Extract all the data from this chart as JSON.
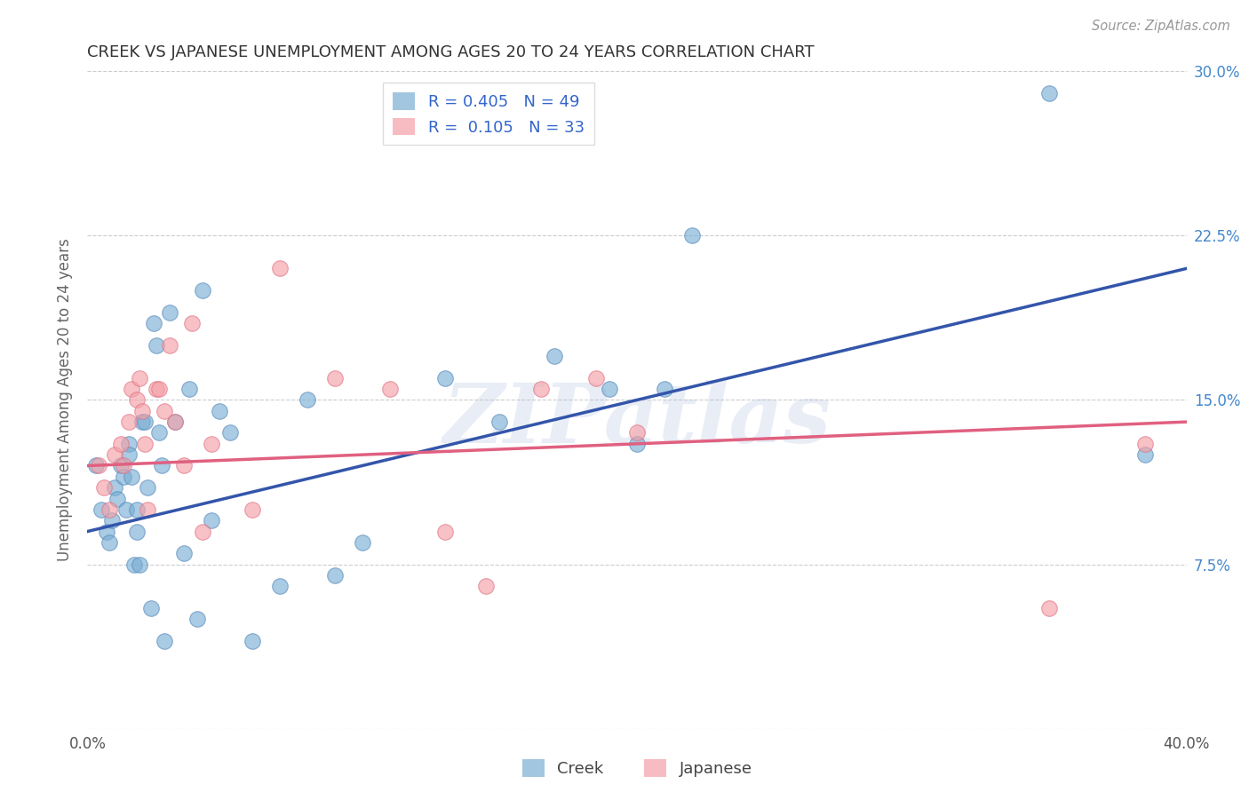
{
  "title": "CREEK VS JAPANESE UNEMPLOYMENT AMONG AGES 20 TO 24 YEARS CORRELATION CHART",
  "source": "Source: ZipAtlas.com",
  "ylabel": "Unemployment Among Ages 20 to 24 years",
  "xlim": [
    0.0,
    0.4
  ],
  "ylim": [
    0.0,
    0.3
  ],
  "legend_creek_R": "0.405",
  "legend_creek_N": "49",
  "legend_japanese_R": "0.105",
  "legend_japanese_N": "33",
  "creek_color": "#7BAFD4",
  "japanese_color": "#F4A0A8",
  "creek_edge_color": "#5588BB",
  "japanese_edge_color": "#E07080",
  "creek_line_color": "#3355AA",
  "japanese_line_color": "#E06080",
  "watermark": "ZIPatlas",
  "creek_x": [
    0.003,
    0.005,
    0.007,
    0.008,
    0.009,
    0.01,
    0.011,
    0.012,
    0.013,
    0.014,
    0.015,
    0.015,
    0.016,
    0.017,
    0.018,
    0.018,
    0.019,
    0.02,
    0.021,
    0.022,
    0.023,
    0.024,
    0.025,
    0.026,
    0.027,
    0.028,
    0.03,
    0.032,
    0.035,
    0.037,
    0.04,
    0.042,
    0.045,
    0.048,
    0.052,
    0.06,
    0.07,
    0.08,
    0.09,
    0.1,
    0.13,
    0.15,
    0.17,
    0.19,
    0.2,
    0.21,
    0.22,
    0.35,
    0.385
  ],
  "creek_y": [
    0.12,
    0.1,
    0.09,
    0.085,
    0.095,
    0.11,
    0.105,
    0.12,
    0.115,
    0.1,
    0.13,
    0.125,
    0.115,
    0.075,
    0.1,
    0.09,
    0.075,
    0.14,
    0.14,
    0.11,
    0.055,
    0.185,
    0.175,
    0.135,
    0.12,
    0.04,
    0.19,
    0.14,
    0.08,
    0.155,
    0.05,
    0.2,
    0.095,
    0.145,
    0.135,
    0.04,
    0.065,
    0.15,
    0.07,
    0.085,
    0.16,
    0.14,
    0.17,
    0.155,
    0.13,
    0.155,
    0.225,
    0.29,
    0.125
  ],
  "japanese_x": [
    0.004,
    0.006,
    0.008,
    0.01,
    0.012,
    0.013,
    0.015,
    0.016,
    0.018,
    0.019,
    0.02,
    0.021,
    0.022,
    0.025,
    0.026,
    0.028,
    0.03,
    0.032,
    0.035,
    0.038,
    0.042,
    0.045,
    0.06,
    0.07,
    0.09,
    0.11,
    0.13,
    0.145,
    0.165,
    0.185,
    0.2,
    0.35,
    0.385
  ],
  "japanese_y": [
    0.12,
    0.11,
    0.1,
    0.125,
    0.13,
    0.12,
    0.14,
    0.155,
    0.15,
    0.16,
    0.145,
    0.13,
    0.1,
    0.155,
    0.155,
    0.145,
    0.175,
    0.14,
    0.12,
    0.185,
    0.09,
    0.13,
    0.1,
    0.21,
    0.16,
    0.155,
    0.09,
    0.065,
    0.155,
    0.16,
    0.135,
    0.055,
    0.13
  ],
  "creek_line_x0": 0.0,
  "creek_line_y0": 0.09,
  "creek_line_x1": 0.4,
  "creek_line_y1": 0.21,
  "japanese_line_x0": 0.0,
  "japanese_line_y0": 0.12,
  "japanese_line_x1": 0.4,
  "japanese_line_y1": 0.14
}
